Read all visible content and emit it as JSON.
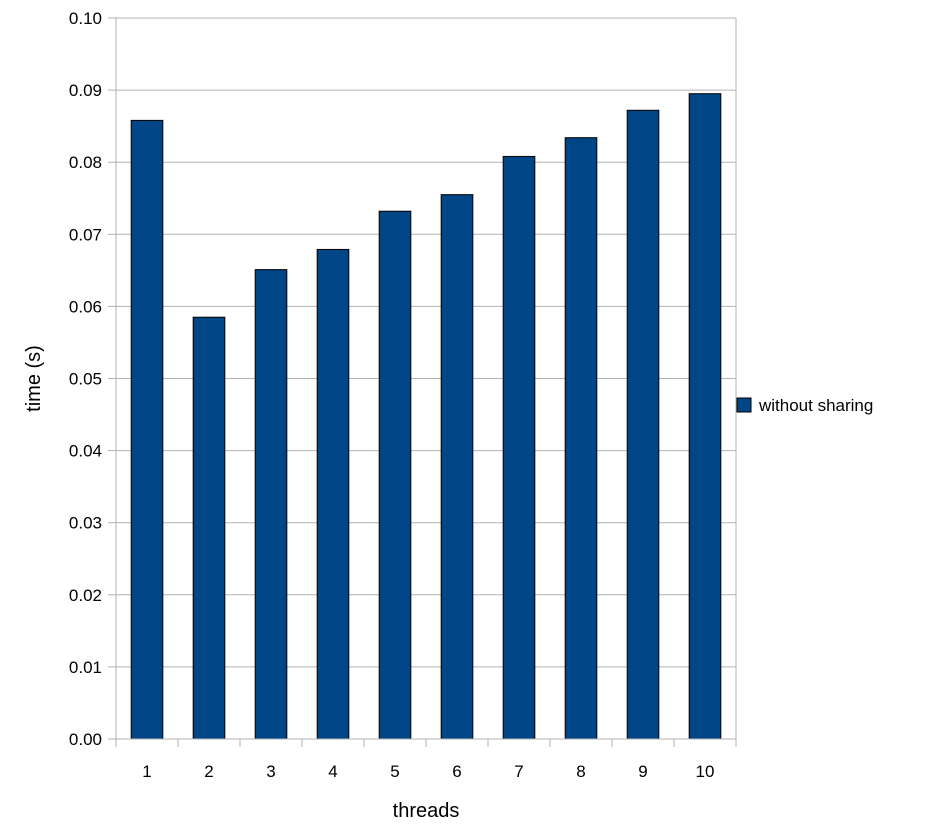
{
  "chart_data": {
    "type": "bar",
    "categories": [
      "1",
      "2",
      "3",
      "4",
      "5",
      "6",
      "7",
      "8",
      "9",
      "10"
    ],
    "series": [
      {
        "name": "without sharing",
        "values": [
          0.0858,
          0.0585,
          0.0651,
          0.0679,
          0.0732,
          0.0755,
          0.0808,
          0.0834,
          0.0872,
          0.0895
        ],
        "color": "#004586"
      }
    ],
    "title": "",
    "xlabel": "threads",
    "ylabel": "time (s)",
    "ylim": [
      0,
      0.1
    ],
    "yticks": [
      "0.00",
      "0.01",
      "0.02",
      "0.03",
      "0.04",
      "0.05",
      "0.06",
      "0.07",
      "0.08",
      "0.09",
      "0.10"
    ],
    "grid": true,
    "legend": "right"
  }
}
